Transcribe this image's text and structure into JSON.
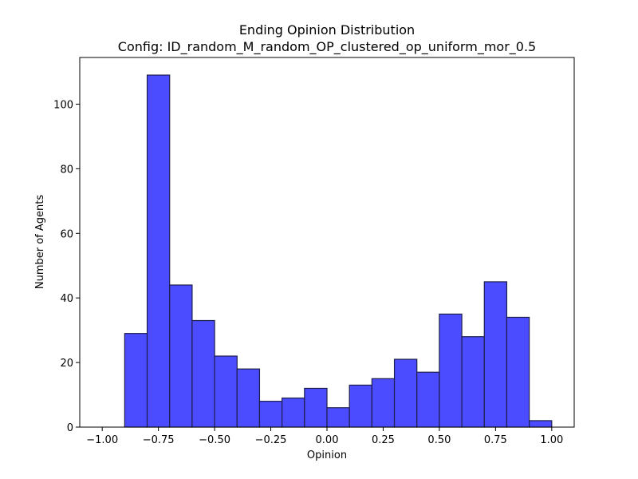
{
  "chart_data": {
    "type": "bar",
    "title_lines": [
      "Ending Opinion Distribution",
      "Config: ID_random_M_random_OP_clustered_op_uniform_mor_0.5"
    ],
    "xlabel": "Opinion",
    "ylabel": "Number of Agents",
    "xlim": [
      -1.1,
      1.1
    ],
    "ylim": [
      0,
      114.45
    ],
    "x_ticks": [
      -1.0,
      -0.75,
      -0.5,
      -0.25,
      0.0,
      0.25,
      0.5,
      0.75,
      1.0
    ],
    "x_tick_labels": [
      "−1.00",
      "−0.75",
      "−0.50",
      "−0.25",
      "0.00",
      "0.25",
      "0.50",
      "0.75",
      "1.00"
    ],
    "y_ticks": [
      0,
      20,
      40,
      60,
      80,
      100
    ],
    "y_tick_labels": [
      "0",
      "20",
      "40",
      "60",
      "80",
      "100"
    ],
    "bin_edges": [
      -1.0,
      -0.9,
      -0.8,
      -0.7,
      -0.6,
      -0.5,
      -0.4,
      -0.3,
      -0.2,
      -0.1,
      0.0,
      0.1,
      0.2,
      0.3,
      0.4,
      0.5,
      0.6,
      0.7,
      0.8,
      0.9,
      1.0
    ],
    "values": [
      0,
      29,
      109,
      44,
      33,
      22,
      18,
      8,
      9,
      12,
      6,
      13,
      15,
      21,
      17,
      35,
      28,
      45,
      34,
      2
    ],
    "bar_color": "#4b4bff",
    "edge_color": "#1e1e4b",
    "grid": false,
    "legend": "none"
  }
}
